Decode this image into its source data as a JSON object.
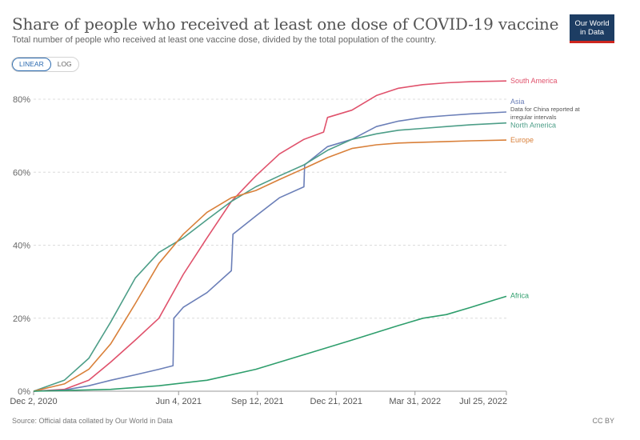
{
  "header": {
    "title": "Share of people who received at least one dose of COVID-19 vaccine",
    "subtitle": "Total number of people who received at least one vaccine dose, divided by the total population of the country.",
    "logo_line1": "Our World",
    "logo_line2": "in Data"
  },
  "controls": {
    "linear_label": "LINEAR",
    "log_label": "LOG",
    "active": "LINEAR"
  },
  "footer": {
    "source": "Source: Official data collated by Our World in Data",
    "license": "CC BY"
  },
  "chart_data": {
    "type": "line",
    "title": "Share of people who received at least one dose of COVID-19 vaccine",
    "xlabel": "",
    "ylabel": "",
    "x_tick_labels": [
      "Dec 2, 2020",
      "Jun 4, 2021",
      "Sep 12, 2021",
      "Dec 21, 2021",
      "Mar 31, 2022",
      "Jul 25, 2022"
    ],
    "y_tick_labels": [
      "0%",
      "20%",
      "40%",
      "60%",
      "80%"
    ],
    "y_ticks": [
      0,
      20,
      40,
      60,
      80
    ],
    "ylim": [
      0,
      85
    ],
    "xlim": [
      "2020-12-02",
      "2022-07-25"
    ],
    "grid": "horizontal dashed",
    "legend": "labels at line ends (right)",
    "annotation": "Data for China reported at irregular intervals",
    "series": [
      {
        "name": "South America",
        "color": "#e0526c",
        "x": [
          "2020-12-02",
          "2021-01-10",
          "2021-02-10",
          "2021-03-10",
          "2021-04-10",
          "2021-05-10",
          "2021-06-10",
          "2021-07-10",
          "2021-08-10",
          "2021-09-10",
          "2021-10-10",
          "2021-11-10",
          "2021-12-05",
          "2021-12-10",
          "2022-01-10",
          "2022-02-10",
          "2022-03-10",
          "2022-04-10",
          "2022-05-10",
          "2022-06-10",
          "2022-07-25"
        ],
        "y": [
          0,
          0.5,
          3,
          8,
          14,
          20,
          32,
          42,
          52,
          59,
          65,
          69,
          71,
          75,
          77,
          81,
          83,
          84,
          84.5,
          84.8,
          85
        ]
      },
      {
        "name": "Asia",
        "color": "#6b7fb8",
        "x": [
          "2020-12-02",
          "2021-01-10",
          "2021-02-10",
          "2021-03-10",
          "2021-04-10",
          "2021-05-10",
          "2021-05-28",
          "2021-05-29",
          "2021-06-10",
          "2021-07-10",
          "2021-08-10",
          "2021-08-12",
          "2021-09-10",
          "2021-10-10",
          "2021-11-10",
          "2021-11-11",
          "2021-12-10",
          "2022-01-10",
          "2022-02-10",
          "2022-03-10",
          "2022-04-10",
          "2022-05-10",
          "2022-06-10",
          "2022-07-25"
        ],
        "y": [
          0,
          0.3,
          1.5,
          3,
          4.5,
          6,
          7,
          20,
          23,
          27,
          33,
          43,
          48,
          53,
          56,
          62,
          67,
          69,
          72.5,
          74,
          75,
          75.5,
          76,
          76.5
        ]
      },
      {
        "name": "North America",
        "color": "#4d9e88",
        "x": [
          "2020-12-02",
          "2021-01-10",
          "2021-02-10",
          "2021-03-10",
          "2021-04-10",
          "2021-05-10",
          "2021-06-10",
          "2021-07-10",
          "2021-08-10",
          "2021-09-10",
          "2021-10-10",
          "2021-11-10",
          "2021-12-10",
          "2022-01-10",
          "2022-02-10",
          "2022-03-10",
          "2022-04-10",
          "2022-05-10",
          "2022-06-10",
          "2022-07-25"
        ],
        "y": [
          0,
          3,
          9,
          19,
          31,
          38,
          42,
          47,
          52,
          56,
          59,
          62,
          66,
          69,
          70.5,
          71.5,
          72,
          72.5,
          73,
          73.5
        ]
      },
      {
        "name": "Europe",
        "color": "#d9803a",
        "x": [
          "2020-12-02",
          "2021-01-10",
          "2021-02-10",
          "2021-03-10",
          "2021-04-10",
          "2021-05-10",
          "2021-06-10",
          "2021-07-10",
          "2021-08-10",
          "2021-09-10",
          "2021-10-10",
          "2021-11-10",
          "2021-12-10",
          "2022-01-10",
          "2022-02-10",
          "2022-03-10",
          "2022-04-10",
          "2022-05-10",
          "2022-06-10",
          "2022-07-25"
        ],
        "y": [
          0,
          2,
          6,
          13,
          24,
          35,
          43,
          49,
          53,
          55,
          58,
          61,
          64,
          66.5,
          67.5,
          68,
          68.2,
          68.4,
          68.6,
          68.8
        ]
      },
      {
        "name": "Africa",
        "color": "#2e9e6c",
        "x": [
          "2020-12-02",
          "2021-03-10",
          "2021-05-10",
          "2021-07-10",
          "2021-09-10",
          "2021-11-10",
          "2022-01-10",
          "2022-03-10",
          "2022-04-10",
          "2022-05-10",
          "2022-06-10",
          "2022-07-10",
          "2022-07-25"
        ],
        "y": [
          0,
          0.5,
          1.5,
          3,
          6,
          10,
          14,
          18,
          20,
          21,
          23,
          25,
          26
        ]
      }
    ]
  }
}
